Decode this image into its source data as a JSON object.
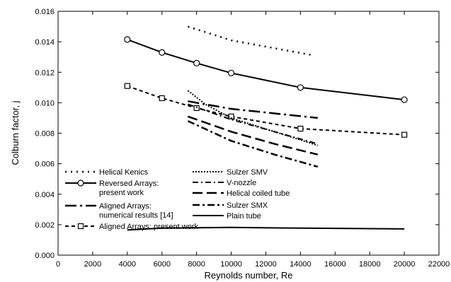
{
  "chart_data": {
    "type": "line",
    "title": "",
    "xlabel": "Reynolds number, Re",
    "ylabel": "Colburn factor, j",
    "xlim": [
      0,
      22000
    ],
    "ylim": [
      0,
      0.016
    ],
    "x_ticks": [
      0,
      2000,
      4000,
      6000,
      8000,
      10000,
      12000,
      14000,
      16000,
      18000,
      20000,
      22000
    ],
    "y_ticks": [
      0.0,
      0.002,
      0.004,
      0.006,
      0.008,
      0.01,
      0.012,
      0.014,
      0.016
    ],
    "x_tick_labels": [
      "0",
      "2000",
      "4000",
      "6000",
      "8000",
      "10000",
      "12000",
      "14000",
      "16000",
      "18000",
      "20000",
      "22000"
    ],
    "y_tick_labels": [
      "0.000",
      "0.002",
      "0.004",
      "0.006",
      "0.008",
      "0.010",
      "0.012",
      "0.014",
      "0.016"
    ],
    "grid": false,
    "legend_position": "bottom-left",
    "series": [
      {
        "name": "Helical Kenics",
        "style": "dotted-sparse",
        "marker": "none",
        "x": [
          7500,
          10000,
          14800
        ],
        "y": [
          0.015,
          0.0141,
          0.0131
        ]
      },
      {
        "name": "Reversed Arrays: present work",
        "style": "solid",
        "marker": "circle",
        "x": [
          4000,
          6000,
          8000,
          10000,
          14000,
          20000
        ],
        "y": [
          0.01415,
          0.0133,
          0.0126,
          0.01195,
          0.011,
          0.0102
        ]
      },
      {
        "name": "Aligned Arrays: numerical results [14]",
        "style": "long-dash-dot",
        "marker": "none",
        "x": [
          7500,
          10000,
          15000
        ],
        "y": [
          0.0101,
          0.0096,
          0.009
        ]
      },
      {
        "name": "Aligned Arrays: present work",
        "style": "dashed",
        "marker": "square",
        "x": [
          4000,
          6000,
          8000,
          10000,
          14000,
          20000
        ],
        "y": [
          0.0111,
          0.0103,
          0.00965,
          0.0091,
          0.0083,
          0.0079
        ]
      },
      {
        "name": "Sulzer SMV",
        "style": "dotted-dense",
        "marker": "none",
        "x": [
          7500,
          8500,
          10000,
          12500,
          15000
        ],
        "y": [
          0.0108,
          0.0099,
          0.009,
          0.0081,
          0.0072
        ]
      },
      {
        "name": "V-nozzle",
        "style": "dash-dot",
        "marker": "none",
        "x": [
          7500,
          10000,
          12500,
          15000
        ],
        "y": [
          0.0099,
          0.0089,
          0.0081,
          0.0073
        ]
      },
      {
        "name": "Helical coiled tube",
        "style": "long-dash",
        "marker": "none",
        "x": [
          7500,
          10000,
          12500,
          15000
        ],
        "y": [
          0.0091,
          0.0081,
          0.0073,
          0.0066
        ]
      },
      {
        "name": "Sulzer SMX",
        "style": "dash-dot-heavy",
        "marker": "none",
        "x": [
          7500,
          10000,
          12500,
          15000
        ],
        "y": [
          0.0088,
          0.0075,
          0.0066,
          0.0058
        ]
      },
      {
        "name": "Plain tube",
        "style": "solid",
        "marker": "none",
        "x": [
          4000,
          6000,
          10000,
          14000,
          20000
        ],
        "y": [
          0.00165,
          0.00177,
          0.00182,
          0.00177,
          0.00172
        ]
      }
    ],
    "legend_entries": [
      {
        "label": "Helical Kenics",
        "series_index": 0
      },
      {
        "label": "Reversed Arrays:",
        "label2": "present work",
        "series_index": 1
      },
      {
        "label": "Aligned Arrays:",
        "label2": "numerical results [14]",
        "series_index": 2
      },
      {
        "label": "Aligned Arrays: present work",
        "series_index": 3
      },
      {
        "label": "Sulzer SMV",
        "series_index": 4
      },
      {
        "label": "V-nozzle",
        "series_index": 5
      },
      {
        "label": "Helical coiled tube",
        "series_index": 6
      },
      {
        "label": "Sulzer SMX",
        "series_index": 7
      },
      {
        "label": "Plain tube",
        "series_index": 8
      }
    ]
  }
}
